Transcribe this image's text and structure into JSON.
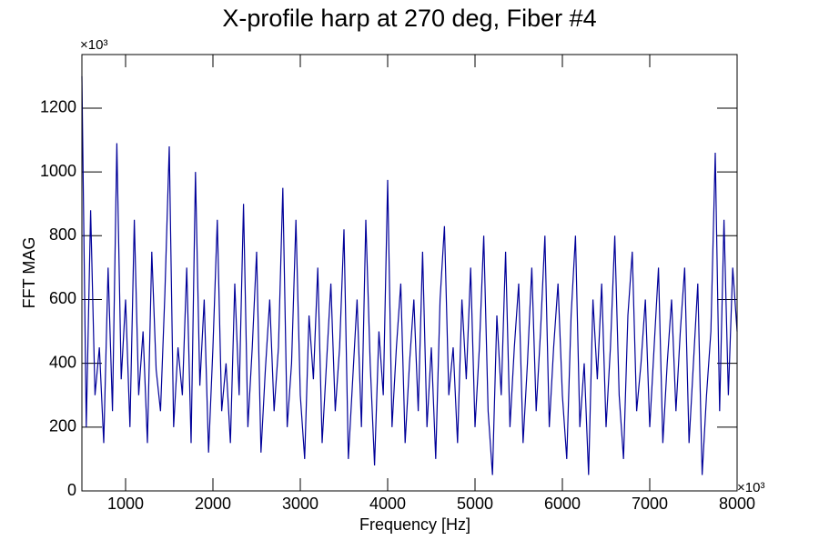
{
  "chart_data": {
    "type": "line",
    "title": "X-profile harp at 270 deg, Fiber #4",
    "x_label": "Frequency [Hz]",
    "y_label": "FFT MAG",
    "x_multiplier": "×10³",
    "y_multiplier": "×10³",
    "xlim": [
      500,
      8000
    ],
    "ylim": [
      0,
      1368
    ],
    "xticks": [
      1000,
      2000,
      3000,
      4000,
      5000,
      6000,
      7000,
      8000
    ],
    "yticks": [
      0,
      200,
      400,
      600,
      800,
      1000,
      1200
    ],
    "grid": false,
    "x": [
      500,
      550,
      600,
      650,
      700,
      750,
      800,
      850,
      900,
      950,
      1000,
      1050,
      1100,
      1150,
      1200,
      1250,
      1300,
      1350,
      1400,
      1450,
      1500,
      1550,
      1600,
      1650,
      1700,
      1750,
      1800,
      1850,
      1900,
      1950,
      2000,
      2050,
      2100,
      2150,
      2200,
      2250,
      2300,
      2350,
      2400,
      2450,
      2500,
      2550,
      2600,
      2650,
      2700,
      2750,
      2800,
      2850,
      2900,
      2950,
      3000,
      3050,
      3100,
      3150,
      3200,
      3250,
      3300,
      3350,
      3400,
      3450,
      3500,
      3550,
      3600,
      3650,
      3700,
      3750,
      3800,
      3850,
      3900,
      3950,
      4000,
      4050,
      4100,
      4150,
      4200,
      4250,
      4300,
      4350,
      4400,
      4450,
      4500,
      4550,
      4600,
      4650,
      4700,
      4750,
      4800,
      4850,
      4900,
      4950,
      5000,
      5050,
      5100,
      5150,
      5200,
      5250,
      5300,
      5350,
      5400,
      5450,
      5500,
      5550,
      5600,
      5650,
      5700,
      5750,
      5800,
      5850,
      5900,
      5950,
      6000,
      6050,
      6100,
      6150,
      6200,
      6250,
      6300,
      6350,
      6400,
      6450,
      6500,
      6550,
      6600,
      6650,
      6700,
      6750,
      6800,
      6850,
      6900,
      6950,
      7000,
      7050,
      7100,
      7150,
      7200,
      7250,
      7300,
      7350,
      7400,
      7450,
      7500,
      7550,
      7600,
      7650,
      7700,
      7750,
      7800,
      7850,
      7900,
      7950,
      8000
    ],
    "series": [
      {
        "color": "#000099",
        "values": [
          1300,
          200,
          880,
          300,
          450,
          150,
          700,
          250,
          1090,
          350,
          600,
          200,
          850,
          300,
          500,
          150,
          750,
          380,
          250,
          620,
          1080,
          200,
          450,
          300,
          700,
          150,
          1000,
          330,
          600,
          120,
          450,
          850,
          250,
          400,
          150,
          650,
          300,
          900,
          200,
          450,
          750,
          120,
          380,
          600,
          250,
          450,
          950,
          200,
          400,
          850,
          300,
          100,
          550,
          350,
          700,
          150,
          400,
          650,
          250,
          450,
          820,
          100,
          350,
          600,
          200,
          850,
          400,
          80,
          500,
          300,
          975,
          200,
          450,
          650,
          150,
          400,
          600,
          250,
          750,
          200,
          450,
          100,
          600,
          830,
          300,
          450,
          150,
          600,
          350,
          700,
          200,
          450,
          800,
          250,
          50,
          550,
          300,
          750,
          200,
          450,
          650,
          150,
          400,
          700,
          250,
          500,
          800,
          200,
          450,
          650,
          300,
          100,
          550,
          800,
          200,
          400,
          50,
          600,
          350,
          650,
          200,
          450,
          800,
          300,
          100,
          550,
          750,
          250,
          400,
          600,
          200,
          450,
          700,
          150,
          400,
          600,
          250,
          500,
          700,
          150,
          400,
          650,
          50,
          300,
          500,
          1060,
          250,
          850,
          300,
          700,
          500
        ]
      }
    ]
  }
}
